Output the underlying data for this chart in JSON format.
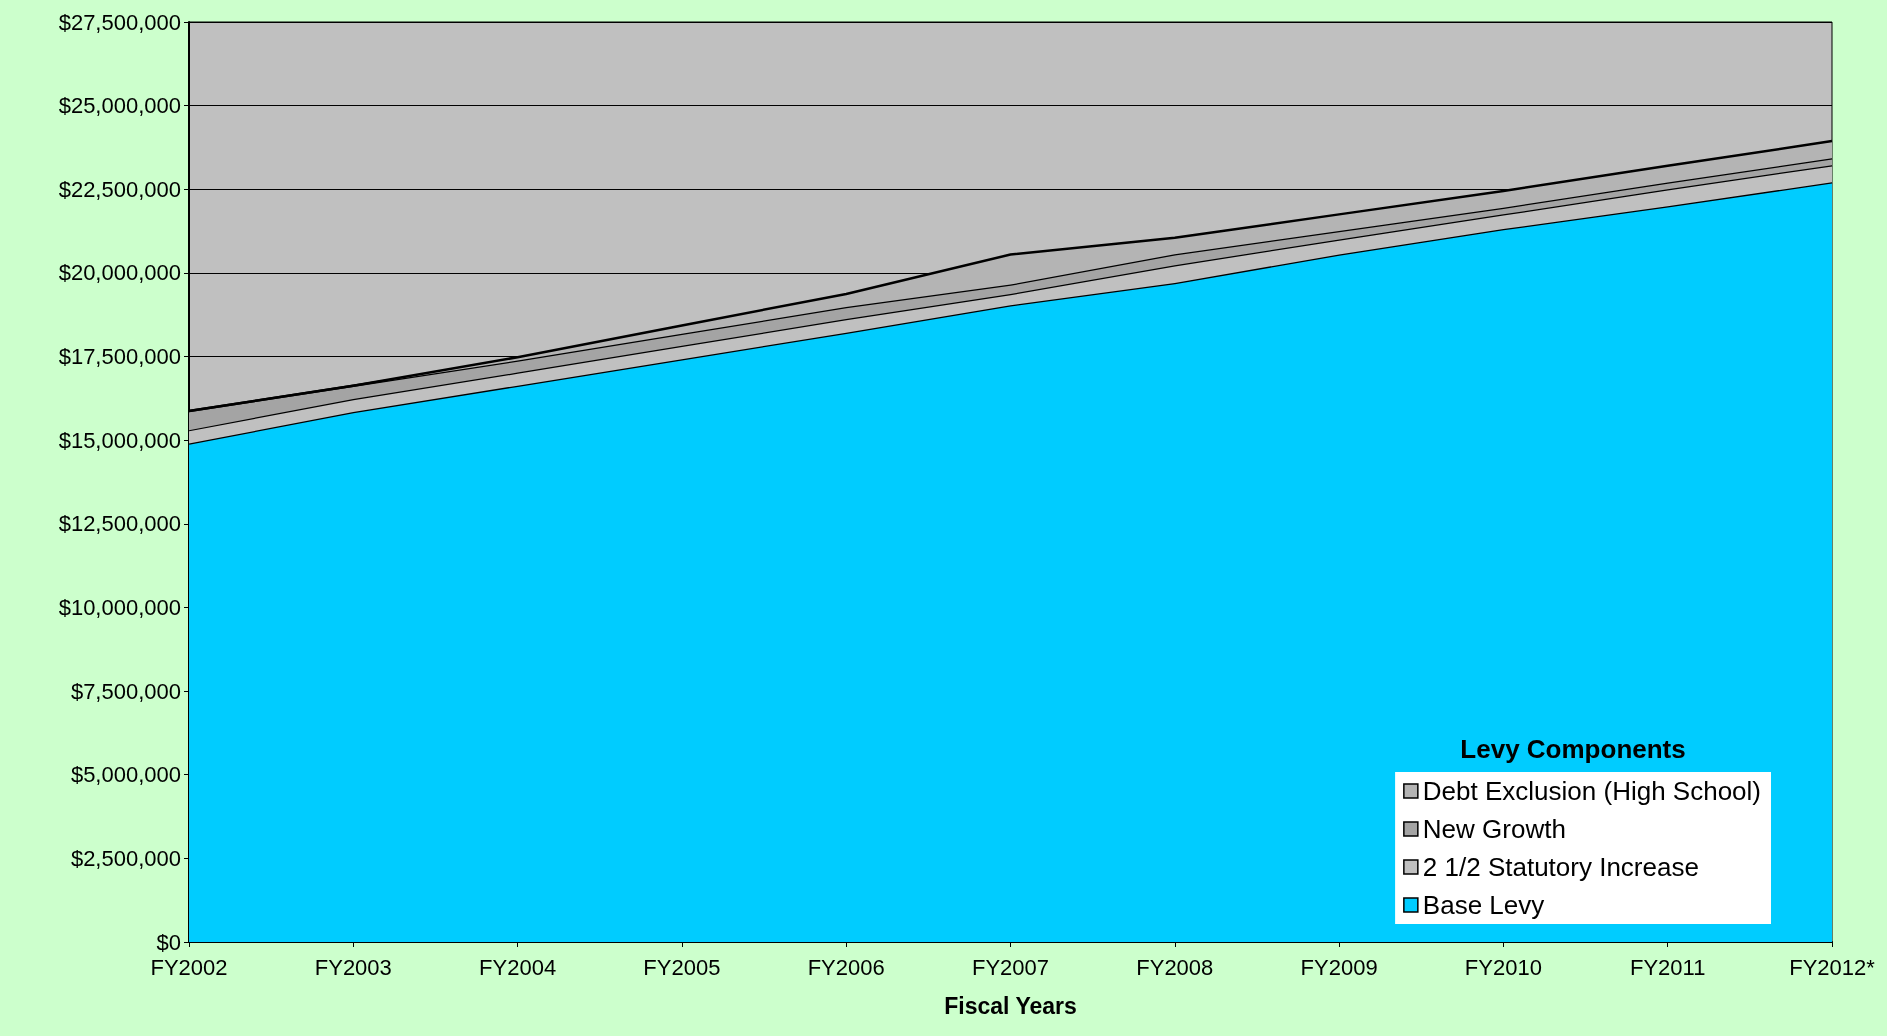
{
  "chart_data": {
    "type": "area",
    "stacked": true,
    "xlabel": "Fiscal Years",
    "legend_title": "Levy Components",
    "legend": "bottom right",
    "grid": "y",
    "marker": "none",
    "categories": [
      "FY2002",
      "FY2003",
      "FY2004",
      "FY2005",
      "FY2006",
      "FY2007",
      "FY2008",
      "FY2009",
      "FY2010",
      "FY2011",
      "FY2012*"
    ],
    "ylim": [
      0,
      27500000
    ],
    "yticks": [
      {
        "value": 0,
        "label": "$0"
      },
      {
        "value": 2500000,
        "label": "$2,500,000"
      },
      {
        "value": 5000000,
        "label": "$5,000,000"
      },
      {
        "value": 7500000,
        "label": "$7,500,000"
      },
      {
        "value": 10000000,
        "label": "$10,000,000"
      },
      {
        "value": 12500000,
        "label": "$12,500,000"
      },
      {
        "value": 15000000,
        "label": "$15,000,000"
      },
      {
        "value": 17500000,
        "label": "$17,500,000"
      },
      {
        "value": 20000000,
        "label": "$20,000,000"
      },
      {
        "value": 22500000,
        "label": "$22,500,000"
      },
      {
        "value": 25000000,
        "label": "$25,000,000"
      },
      {
        "value": 27500000,
        "label": "$27,500,000"
      }
    ],
    "series": [
      {
        "name": "Base Levy",
        "color": "#00ccff",
        "values": [
          14900000,
          15840000,
          16630000,
          17420000,
          18210000,
          19030000,
          19700000,
          20550000,
          21310000,
          21990000,
          22710000
        ]
      },
      {
        "name": "2 1/2 Statutory Increase",
        "color": "#c0c0c0",
        "values": [
          400000,
          390000,
          390000,
          400000,
          410000,
          340000,
          530000,
          450000,
          440000,
          510000,
          510000
        ]
      },
      {
        "name": "New Growth",
        "color": "#a4a4a4",
        "values": [
          570000,
          400000,
          360000,
          360000,
          360000,
          280000,
          330000,
          250000,
          200000,
          200000,
          210000
        ]
      },
      {
        "name": "Debt Exclusion (High School)",
        "color": "#b4b4b4",
        "values": [
          0,
          0,
          100000,
          250000,
          390000,
          900000,
          490000,
          500000,
          500000,
          500000,
          510000
        ]
      }
    ]
  }
}
